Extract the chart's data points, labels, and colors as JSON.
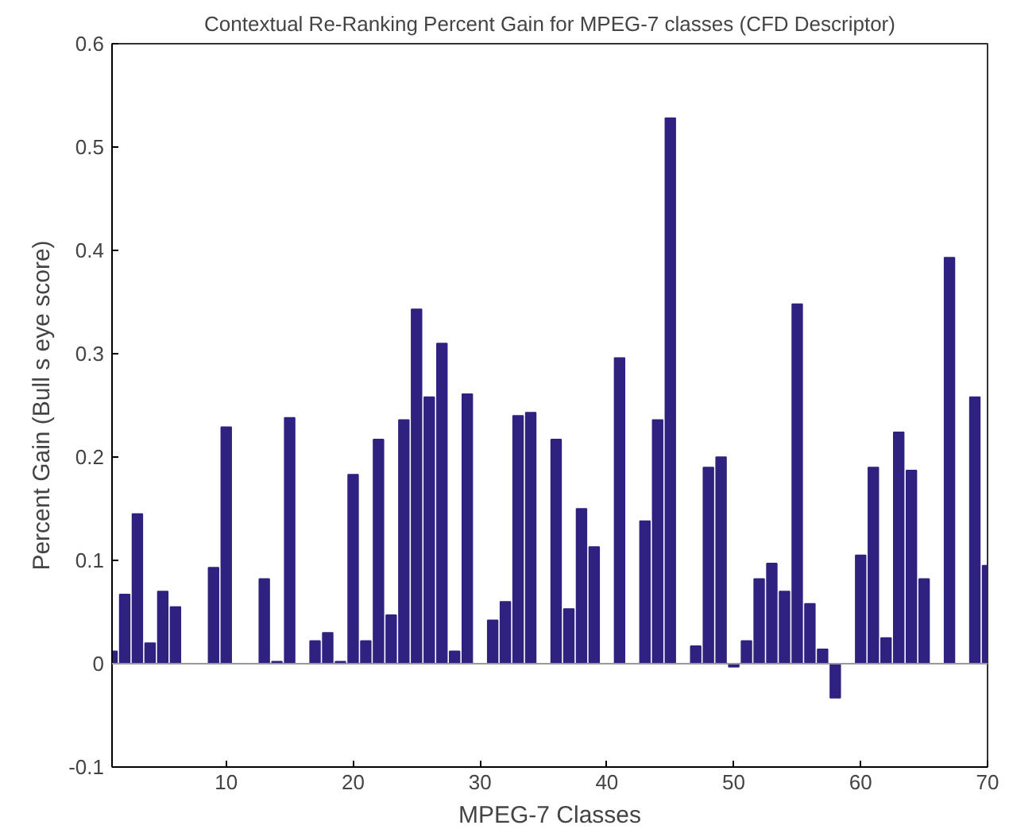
{
  "chart_data": {
    "type": "bar",
    "title": "Contextual Re-Ranking Percent Gain for MPEG-7 classes (CFD Descriptor)",
    "xlabel": "MPEG-7 Classes",
    "ylabel": "Percent Gain (Bull s eye score)",
    "x": [
      1,
      2,
      3,
      4,
      5,
      6,
      7,
      8,
      9,
      10,
      11,
      12,
      13,
      14,
      15,
      16,
      17,
      18,
      19,
      20,
      21,
      22,
      23,
      24,
      25,
      26,
      27,
      28,
      29,
      30,
      31,
      32,
      33,
      34,
      35,
      36,
      37,
      38,
      39,
      40,
      41,
      42,
      43,
      44,
      45,
      46,
      47,
      48,
      49,
      50,
      51,
      52,
      53,
      54,
      55,
      56,
      57,
      58,
      59,
      60,
      61,
      62,
      63,
      64,
      65,
      66,
      67,
      68,
      69,
      70
    ],
    "values": [
      0.012,
      0.067,
      0.145,
      0.02,
      0.07,
      0.055,
      0,
      0,
      0.093,
      0.229,
      0,
      0,
      0.082,
      0.002,
      0.238,
      0,
      0.022,
      0.03,
      0.002,
      0.183,
      0.022,
      0.217,
      0.047,
      0.236,
      0.343,
      0.258,
      0.31,
      0.012,
      0.261,
      0,
      0.042,
      0.06,
      0.24,
      0.243,
      0,
      0.217,
      0.053,
      0.15,
      0.113,
      0,
      0.296,
      0,
      0.138,
      0.236,
      0.528,
      0,
      0.017,
      0.19,
      0.2,
      -0.003,
      0.022,
      0.082,
      0.097,
      0.07,
      0.348,
      0.058,
      0.014,
      -0.033,
      0,
      0.105,
      0.19,
      0.025,
      0.224,
      0.187,
      0.082,
      0,
      0.393,
      0,
      0.258,
      0.095
    ],
    "color": "#2e2180",
    "xlim": [
      1,
      70
    ],
    "xticks": [
      10,
      20,
      30,
      40,
      50,
      60,
      70
    ],
    "ylim": [
      -0.1,
      0.6
    ],
    "yticks": [
      {
        "value": -0.1,
        "label": "-0.1"
      },
      {
        "value": 0,
        "label": "0"
      },
      {
        "value": 0.1,
        "label": "0.1"
      },
      {
        "value": 0.2,
        "label": "0.2"
      },
      {
        "value": 0.3,
        "label": "0.3"
      },
      {
        "value": 0.4,
        "label": "0.4"
      },
      {
        "value": 0.5,
        "label": "0.5"
      },
      {
        "value": 0.6,
        "label": "0.6"
      }
    ],
    "ref_lines": [
      {
        "axis": "y",
        "value": 0,
        "color": "#999999"
      }
    ]
  }
}
